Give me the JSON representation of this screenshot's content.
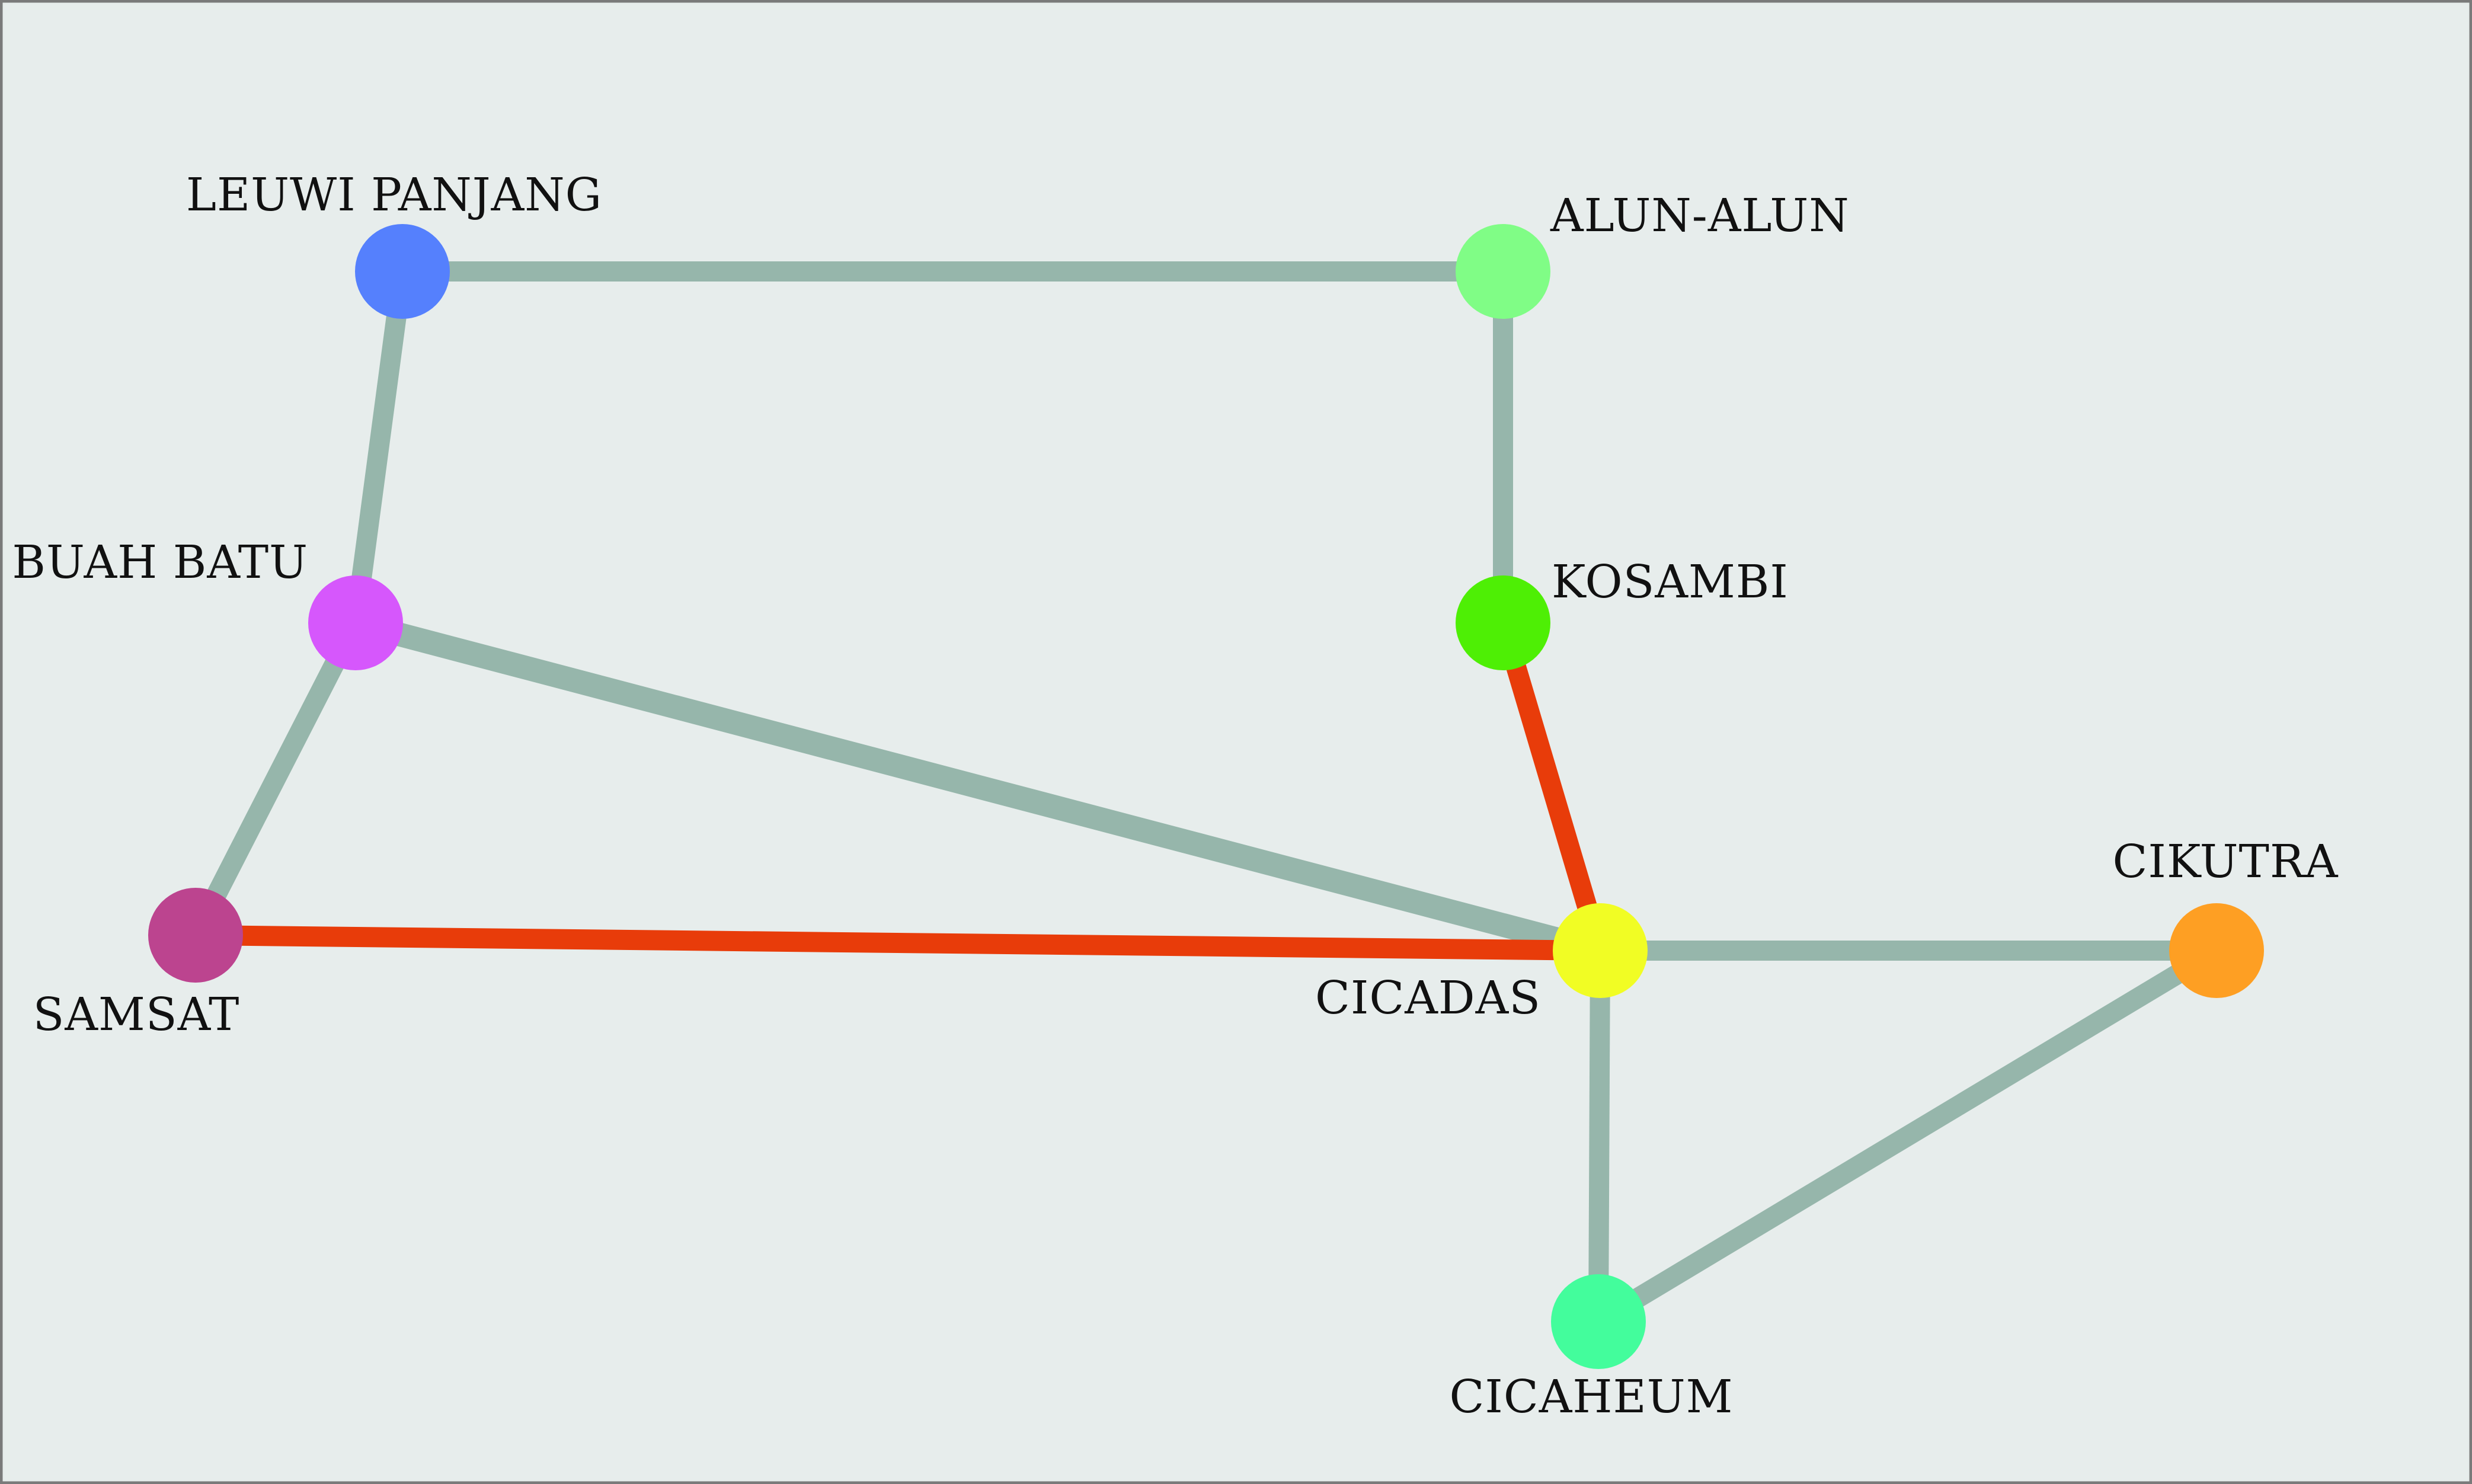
{
  "colors": {
    "background": "#e7edec",
    "frame": "#7a7a7a",
    "edge_default": "#96b6ab",
    "edge_highlight": "#e83c0a"
  },
  "stations": [
    {
      "id": "leuwi-panjang",
      "name": "LEUWI PANJANG",
      "color": "#5580fd"
    },
    {
      "id": "alun-alun",
      "name": "ALUN-ALUN",
      "color": "#80fd86"
    },
    {
      "id": "buah-batu",
      "name": "BUAH BATU",
      "color": "#d657fc"
    },
    {
      "id": "kosambi",
      "name": "KOSAMBI",
      "color": "#4eef05"
    },
    {
      "id": "samsat",
      "name": "SAMSAT",
      "color": "#bc448f"
    },
    {
      "id": "cicadas",
      "name": "CICADAS",
      "color": "#f1fd24"
    },
    {
      "id": "cikutra",
      "name": "CIKUTRA",
      "color": "#fe9f23"
    },
    {
      "id": "cicaheum",
      "name": "CICAHEUM",
      "color": "#43fd9c"
    }
  ],
  "connections": [
    {
      "from": "leuwi-panjang",
      "to": "alun-alun",
      "highlighted": false
    },
    {
      "from": "leuwi-panjang",
      "to": "buah-batu",
      "highlighted": false
    },
    {
      "from": "alun-alun",
      "to": "kosambi",
      "highlighted": false
    },
    {
      "from": "buah-batu",
      "to": "samsat",
      "highlighted": false
    },
    {
      "from": "buah-batu",
      "to": "cicadas",
      "highlighted": false
    },
    {
      "from": "kosambi",
      "to": "cicadas",
      "highlighted": true
    },
    {
      "from": "samsat",
      "to": "cicadas",
      "highlighted": true
    },
    {
      "from": "cicadas",
      "to": "cikutra",
      "highlighted": false
    },
    {
      "from": "cicadas",
      "to": "cicaheum",
      "highlighted": false
    },
    {
      "from": "cikutra",
      "to": "cicaheum",
      "highlighted": false
    }
  ]
}
